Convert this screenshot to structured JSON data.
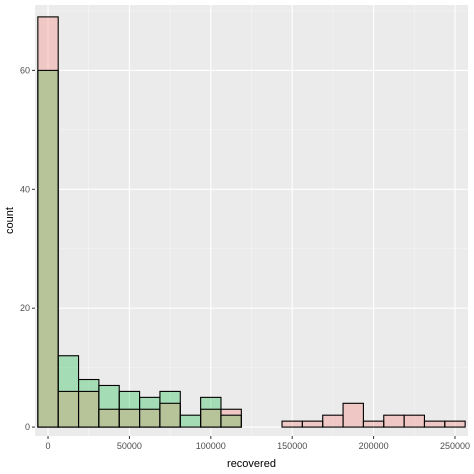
{
  "chart_data": {
    "type": "bar",
    "xlabel": "recovered",
    "ylabel": "count",
    "xlim": [
      -8000,
      258000
    ],
    "ylim": [
      -1.5,
      71
    ],
    "x_ticks": [
      0,
      50000,
      100000,
      150000,
      200000,
      250000
    ],
    "x_tick_labels": [
      "0",
      "50000",
      "100000",
      "150000",
      "200000",
      "250000"
    ],
    "y_ticks": [
      0,
      20,
      40,
      60
    ],
    "y_tick_labels": [
      "0",
      "20",
      "40",
      "60"
    ],
    "bin_width": 12500,
    "bin_centers": [
      0,
      12500,
      25000,
      37500,
      50000,
      62500,
      75000,
      87500,
      100000,
      112500,
      125000,
      137500,
      150000,
      162500,
      175000,
      187500,
      200000,
      212500,
      225000,
      237500,
      250000
    ],
    "series": [
      {
        "values": [
          69,
          6,
          6,
          3,
          3,
          3,
          4,
          0,
          3,
          3,
          0,
          0,
          1,
          1,
          2,
          4,
          1,
          2,
          2,
          1,
          1
        ]
      },
      {
        "values": [
          60,
          12,
          8,
          7,
          6,
          5,
          6,
          2,
          5,
          2,
          0,
          0,
          0,
          0,
          0,
          0,
          0,
          0,
          0,
          0,
          0
        ]
      }
    ],
    "series_colors": [
      "#f8766d",
      "#00ba38"
    ],
    "overlap_color": "#b7c49a",
    "panel_background": "#ebebeb",
    "grid": true,
    "legend": "none"
  }
}
